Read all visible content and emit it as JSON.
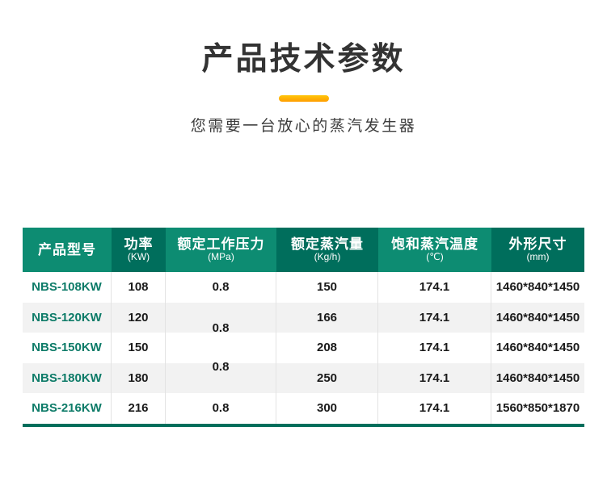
{
  "header": {
    "title": "产品技术参数",
    "subtitle": "您需要一台放心的蒸汽发生器"
  },
  "colors": {
    "accent_bar_top": "#ffc60a",
    "accent_bar_bottom": "#ff9e00",
    "table_header_light": "#0d8c72",
    "table_header_dark": "#006e5c",
    "row_stripe": "#f2f2f2",
    "model_text": "#0d7b68",
    "table_bottom_bar": "#006e5c"
  },
  "table": {
    "headers": [
      {
        "label": "产品型号",
        "unit": ""
      },
      {
        "label": "功率",
        "unit": "(KW)"
      },
      {
        "label": "额定工作压力",
        "unit": "(MPa)"
      },
      {
        "label": "额定蒸汽量",
        "unit": "(Kg/h)"
      },
      {
        "label": "饱和蒸汽温度",
        "unit": "(℃)"
      },
      {
        "label": "外形尺寸",
        "unit": "(mm)"
      }
    ],
    "rows": [
      {
        "model": "NBS-108KW",
        "power": "108",
        "pressure": "0.8",
        "steam": "150",
        "temp": "174.1",
        "dims": "1460*840*1450"
      },
      {
        "model": "NBS-120KW",
        "power": "120",
        "pressure": "0.8",
        "steam": "166",
        "temp": "174.1",
        "dims": "1460*840*1450"
      },
      {
        "model": "NBS-150KW",
        "power": "150",
        "pressure": "",
        "steam": "208",
        "temp": "174.1",
        "dims": "1460*840*1450"
      },
      {
        "model": "NBS-180KW",
        "power": "180",
        "pressure": "0.8",
        "steam": "250",
        "temp": "174.1",
        "dims": "1460*840*1450"
      },
      {
        "model": "NBS-216KW",
        "power": "216",
        "pressure": "0.8",
        "steam": "300",
        "temp": "174.1",
        "dims": "1560*850*1870"
      }
    ]
  }
}
